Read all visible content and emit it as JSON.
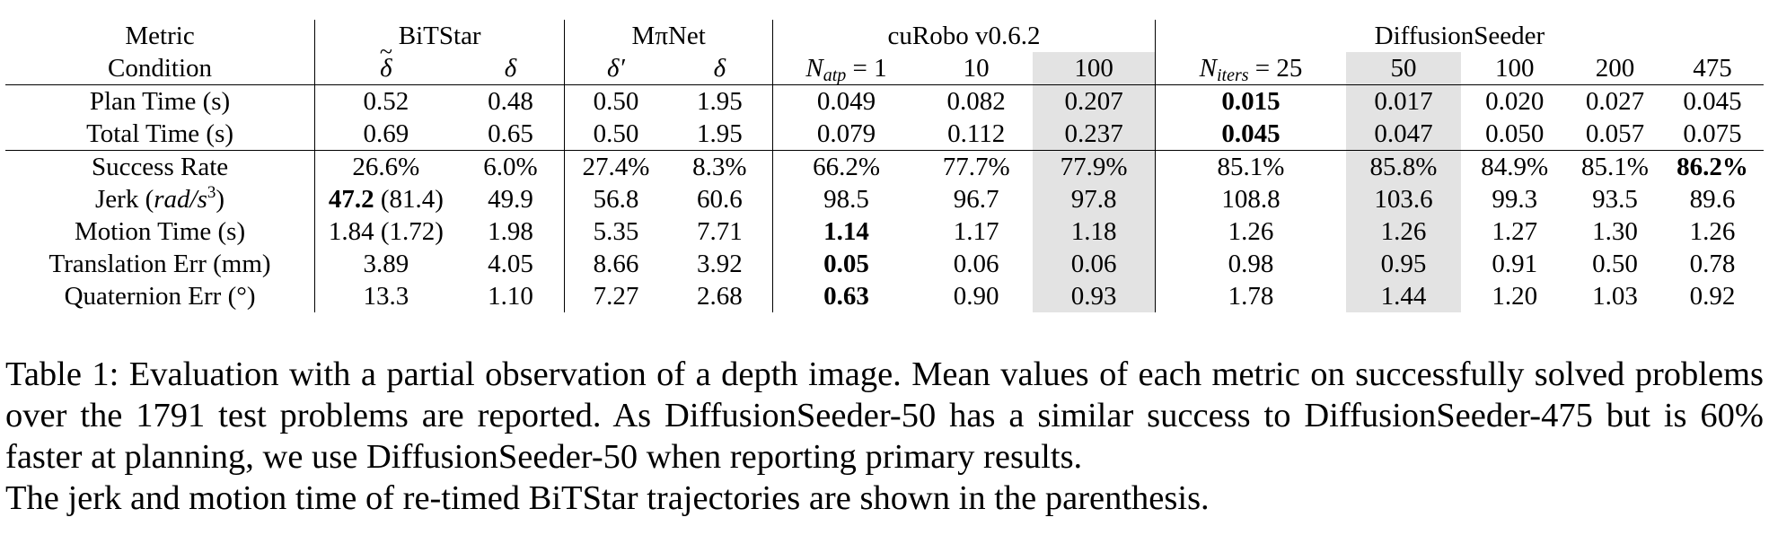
{
  "table": {
    "groups": {
      "metric": "Metric",
      "bitstar": "BiTStar",
      "mpinet": "MπNet",
      "curobo": "cuRobo v0.6.2",
      "diffusion": "DiffusionSeeder"
    },
    "conditions": {
      "label": "Condition",
      "bitstar_a": "δ",
      "bitstar_b": "δ",
      "mpinet_a": "δ′",
      "mpinet_b": "δ",
      "curobo_a_var": "N",
      "curobo_a_sub": "atp",
      "curobo_a_val": " = 1",
      "curobo_b": "10",
      "curobo_c": "100",
      "diff_a_var": "N",
      "diff_a_sub": "iters",
      "diff_a_val": " = 25",
      "diff_b": "50",
      "diff_c": "100",
      "diff_d": "200",
      "diff_e": "475"
    },
    "rows": [
      {
        "metric": "Plan Time (s)",
        "v": [
          "0.52",
          "0.48",
          "0.50",
          "1.95",
          "0.049",
          "0.082",
          "0.207",
          "0.015",
          "0.017",
          "0.020",
          "0.027",
          "0.045"
        ]
      },
      {
        "metric": "Total Time (s)",
        "v": [
          "0.69",
          "0.65",
          "0.50",
          "1.95",
          "0.079",
          "0.112",
          "0.237",
          "0.045",
          "0.047",
          "0.050",
          "0.057",
          "0.075"
        ]
      },
      {
        "metric": "Success Rate",
        "v": [
          "26.6%",
          "6.0%",
          "27.4%",
          "8.3%",
          "66.2%",
          "77.7%",
          "77.9%",
          "85.1%",
          "85.8%",
          "84.9%",
          "85.1%",
          "86.2%"
        ]
      },
      {
        "metric_pre": "Jerk (",
        "metric_var": "rad/s",
        "metric_sup": "3",
        "metric_post": ")",
        "v0_bold": "47.2",
        "v0_rest": " (81.4)",
        "v": [
          "",
          "49.9",
          "56.8",
          "60.6",
          "98.5",
          "96.7",
          "97.8",
          "108.8",
          "103.6",
          "99.3",
          "93.5",
          "89.6"
        ]
      },
      {
        "metric": "Motion Time (s)",
        "v": [
          "1.84 (1.72)",
          "1.98",
          "5.35",
          "7.71",
          "1.14",
          "1.17",
          "1.18",
          "1.26",
          "1.26",
          "1.27",
          "1.30",
          "1.26"
        ]
      },
      {
        "metric": "Translation Err (mm)",
        "v": [
          "3.89",
          "4.05",
          "8.66",
          "3.92",
          "0.05",
          "0.06",
          "0.06",
          "0.98",
          "0.95",
          "0.91",
          "0.50",
          "0.78"
        ]
      },
      {
        "metric": "Quaternion Err (°)",
        "v": [
          "13.3",
          "1.10",
          "7.27",
          "2.68",
          "0.63",
          "0.90",
          "0.93",
          "1.78",
          "1.44",
          "1.20",
          "1.03",
          "0.92"
        ]
      }
    ]
  },
  "caption": {
    "body": "Table 1: Evaluation with a partial observation of a depth image. Mean values of each metric on successfully solved problems over the 1791 test problems are reported. As DiffusionSeeder-50 has a similar success to DiffusionSeeder-475 but is 60% faster at planning, we use DiffusionSeeder-50 when reporting primary results.",
    "last": "The jerk and motion time of re-timed BiTStar trajectories are shown in the parenthesis."
  }
}
